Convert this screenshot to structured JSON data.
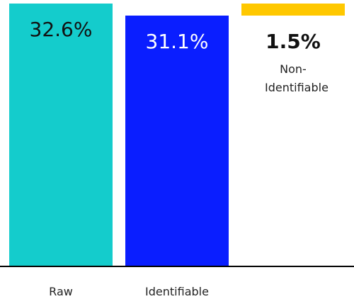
{
  "chart_data": {
    "type": "waterfall",
    "categories": [
      "Raw",
      "Identifiable",
      "Non-Identifiable"
    ],
    "values": [
      32.6,
      31.1,
      1.5
    ],
    "value_labels": [
      "32.6%",
      "31.1%",
      "1.5%"
    ],
    "colors": [
      "#14cccc",
      "#0a1eff",
      "#ffc800"
    ]
  }
}
